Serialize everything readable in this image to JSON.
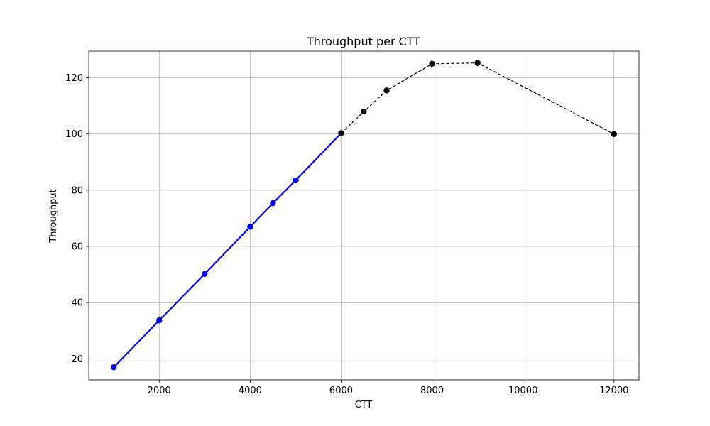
{
  "chart_data": {
    "type": "line",
    "title": "Throughput per CTT",
    "xlabel": "CTT",
    "ylabel": "Throughput",
    "xlim": [
      450,
      12550
    ],
    "ylim": [
      12.5,
      129.5
    ],
    "xticks": [
      2000,
      4000,
      6000,
      8000,
      10000,
      12000
    ],
    "yticks": [
      20,
      40,
      60,
      80,
      100,
      120
    ],
    "grid": true,
    "series": [
      {
        "color": "#0000ff",
        "line_style": "solid",
        "marker": "circle",
        "x": [
          1000,
          2000,
          3000,
          4000,
          4500,
          5000,
          6000
        ],
        "y": [
          17,
          33.7,
          50.2,
          67,
          75.4,
          83.5,
          100.3
        ]
      },
      {
        "color": "#000000",
        "line_style": "dashed",
        "marker": "circle",
        "x": [
          6000,
          6500,
          7000,
          8000,
          9000,
          12000
        ],
        "y": [
          100.3,
          108,
          115.5,
          125,
          125.3,
          100
        ]
      }
    ]
  }
}
